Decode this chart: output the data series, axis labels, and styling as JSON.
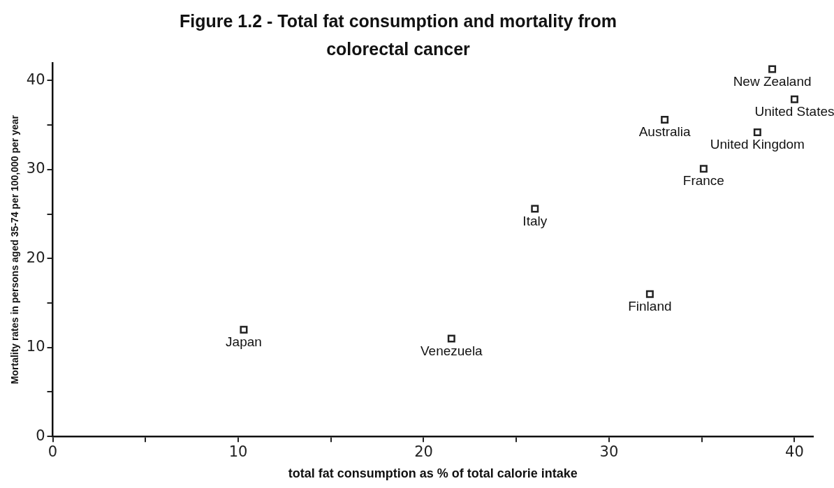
{
  "chart_data": {
    "type": "scatter",
    "title": "Figure 1.2 - Total fat consumption and mortality from colorectal cancer",
    "xlabel": "total fat consumption as % of total calorie intake",
    "ylabel": "Mortality rates in persons aged 35-74 per 100,000 per year",
    "x": [
      10.3,
      21.5,
      26.0,
      32.2,
      35.1,
      33.0,
      38.0,
      40.0,
      38.8
    ],
    "series": [
      {
        "color": "#222222",
        "values": [
          12.0,
          11.0,
          25.6,
          16.0,
          30.1,
          35.6,
          34.2,
          37.9,
          41.3
        ]
      }
    ],
    "annotations": [
      {
        "text": "Japan",
        "x": 10.3,
        "y": 12.0
      },
      {
        "text": "Venezuela",
        "x": 21.5,
        "y": 11.0
      },
      {
        "text": "Italy",
        "x": 26.0,
        "y": 25.6
      },
      {
        "text": "Finland",
        "x": 32.2,
        "y": 16.0
      },
      {
        "text": "France",
        "x": 35.1,
        "y": 30.1
      },
      {
        "text": "Australia",
        "x": 33.0,
        "y": 35.6
      },
      {
        "text": "United Kingdom",
        "x": 38.0,
        "y": 34.2
      },
      {
        "text": "United States",
        "x": 40.0,
        "y": 37.9
      },
      {
        "text": "New Zealand",
        "x": 38.8,
        "y": 41.3
      }
    ],
    "xlim": [
      0,
      41
    ],
    "ylim": [
      0,
      42
    ],
    "xticks": [
      0,
      {
        "value": 5,
        "label": null
      },
      10,
      {
        "value": 15,
        "label": null
      },
      20,
      {
        "value": 25,
        "label": null
      },
      30,
      {
        "value": 35,
        "label": null
      },
      40
    ],
    "yticks": [
      0,
      {
        "value": 5,
        "label": null
      },
      10,
      {
        "value": 15,
        "label": null
      },
      20,
      {
        "value": 25,
        "label": null
      },
      30,
      {
        "value": 35,
        "label": null
      },
      40
    ],
    "grid": false,
    "marker": "square",
    "legend": false
  }
}
